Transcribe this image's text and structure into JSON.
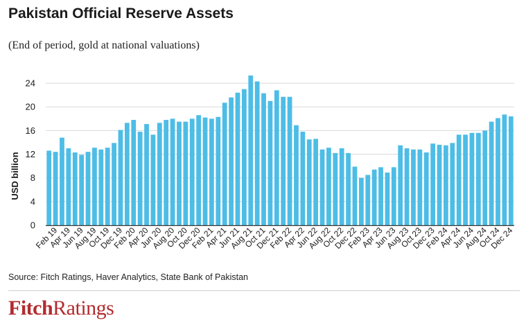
{
  "header": {
    "title": "Pakistan Official Reserve Assets",
    "subtitle": "(End of period, gold at national valuations)"
  },
  "footer": {
    "source": "Source: Fitch Ratings, Haver Analytics, State Bank of Pakistan",
    "logo_part1": "Fitch",
    "logo_part2": "Ratings"
  },
  "colors": {
    "bar": "#4dbde6",
    "grid": "#d9d9d9",
    "axis": "#333333",
    "brand": "#b22b2e"
  },
  "chart_data": {
    "type": "bar",
    "title": "Pakistan Official Reserve Assets",
    "subtitle": "(End of period, gold at national valuations)",
    "xlabel": "",
    "ylabel": "USD billion",
    "ylim": [
      0,
      26
    ],
    "yticks": [
      0,
      4,
      8,
      12,
      16,
      20,
      24
    ],
    "grid": true,
    "categories": [
      "Jan 19",
      "Feb 19",
      "Mar 19",
      "Apr 19",
      "May 19",
      "Jun 19",
      "Jul 19",
      "Aug 19",
      "Sep 19",
      "Oct 19",
      "Nov 19",
      "Dec 19",
      "Jan 20",
      "Feb 20",
      "Mar 20",
      "Apr 20",
      "May 20",
      "Jun 20",
      "Jul 20",
      "Aug 20",
      "Sep 20",
      "Oct 20",
      "Nov 20",
      "Dec 20",
      "Jan 21",
      "Feb 21",
      "Mar 21",
      "Apr 21",
      "May 21",
      "Jun 21",
      "Jul 21",
      "Aug 21",
      "Sep 21",
      "Oct 21",
      "Nov 21",
      "Dec 21",
      "Jan 22",
      "Feb 22",
      "Mar 22",
      "Apr 22",
      "May 22",
      "Jun 22",
      "Jul 22",
      "Aug 22",
      "Sep 22",
      "Oct 22",
      "Nov 22",
      "Dec 22",
      "Jan 23",
      "Feb 23",
      "Mar 23",
      "Apr 23",
      "May 23",
      "Jun 23",
      "Jul 23",
      "Aug 23",
      "Sep 23",
      "Oct 23",
      "Nov 23",
      "Dec 23",
      "Jan 24",
      "Feb 24",
      "Mar 24",
      "Apr 24",
      "May 24",
      "Jun 24",
      "Jul 24",
      "Aug 24",
      "Sep 24",
      "Oct 24",
      "Nov 24",
      "Dec 24"
    ],
    "tick_labels": [
      "Feb 19",
      "Apr 19",
      "Jun 19",
      "Aug 19",
      "Oct 19",
      "Dec 19",
      "Feb 20",
      "Apr 20",
      "Jun 20",
      "Aug 20",
      "Oct 20",
      "Dec 20",
      "Feb 21",
      "Apr 21",
      "Jun 21",
      "Aug 21",
      "Oct 21",
      "Dec 21",
      "Feb 22",
      "Apr 22",
      "Jun 22",
      "Aug 22",
      "Oct 22",
      "Dec 22",
      "Feb 23",
      "Apr 23",
      "Jun 23",
      "Aug 23",
      "Oct 23",
      "Dec 23",
      "Feb 24",
      "Apr 24",
      "Jun 24",
      "Aug 24",
      "Oct 24",
      "Dec 24"
    ],
    "values": [
      12.6,
      12.4,
      14.8,
      13.0,
      12.3,
      11.9,
      12.4,
      13.1,
      12.8,
      13.1,
      13.9,
      16.1,
      17.3,
      17.8,
      15.8,
      17.1,
      15.3,
      17.3,
      17.8,
      18.0,
      17.5,
      17.5,
      18.0,
      18.6,
      18.2,
      18.0,
      18.3,
      20.7,
      21.6,
      22.4,
      23.0,
      25.3,
      24.3,
      22.3,
      21.0,
      22.8,
      21.7,
      21.7,
      16.9,
      15.8,
      14.5,
      14.6,
      12.8,
      13.1,
      12.2,
      13.0,
      12.2,
      9.9,
      8.0,
      8.5,
      9.4,
      9.8,
      8.9,
      9.8,
      13.5,
      13.0,
      12.8,
      12.8,
      12.3,
      13.8,
      13.6,
      13.5,
      13.9,
      15.3,
      15.3,
      15.6,
      15.6,
      16.0,
      17.5,
      18.1,
      18.7,
      18.4
    ]
  }
}
